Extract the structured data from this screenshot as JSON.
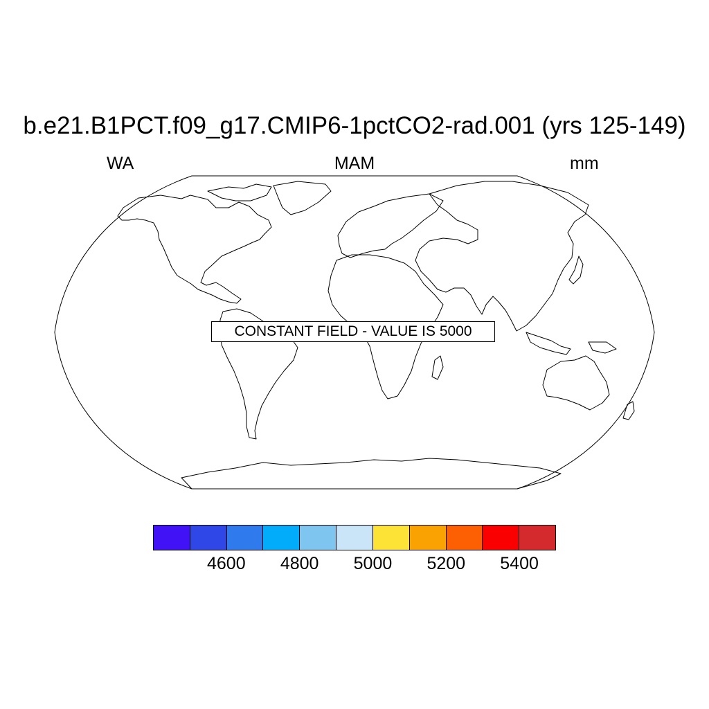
{
  "title": "b.e21.B1PCT.f09_g17.CMIP6-1pctCO2-rad.001 (yrs 125-149)",
  "left_subtitle": "WA",
  "center_subtitle": "MAM",
  "right_subtitle": "mm",
  "notice": "CONSTANT FIELD - VALUE IS 5000",
  "projection": "Robinson",
  "colorbar": {
    "colors": [
      "#4212f7",
      "#2f47e6",
      "#2f7bed",
      "#03acfa",
      "#7ec5ef",
      "#c9e5f7",
      "#fde336",
      "#fba203",
      "#fd5f03",
      "#fb0000",
      "#d42a2d"
    ],
    "tick_labels": [
      "4600",
      "4800",
      "5000",
      "5200",
      "5400"
    ],
    "tick_values": [
      4600,
      4800,
      5000,
      5200,
      5400
    ],
    "min": 4400,
    "max": 5500
  }
}
